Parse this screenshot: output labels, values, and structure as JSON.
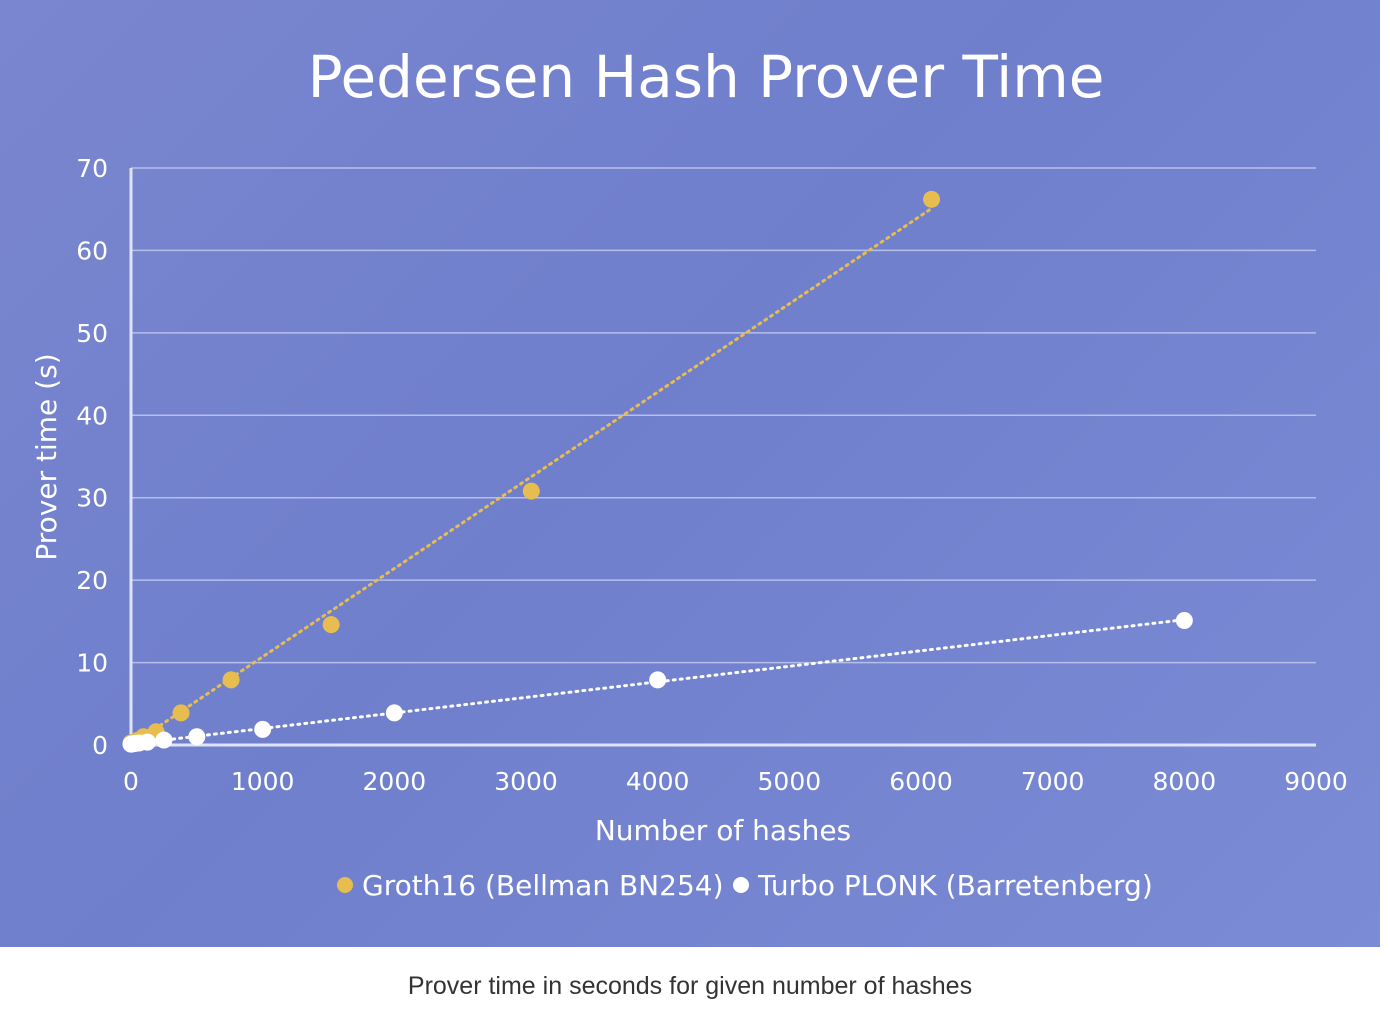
{
  "caption": "Prover time in seconds for given number of hashes",
  "colors": {
    "background": "#7482cf",
    "groth16": "#e7bd4f",
    "plonk": "#ffffff",
    "text": "#ffffff"
  },
  "chart_data": {
    "type": "scatter",
    "title": "Pedersen Hash Prover Time",
    "xlabel": "Number of hashes",
    "ylabel": "Prover time (s)",
    "xlim": [
      0,
      9000
    ],
    "ylim": [
      0,
      70
    ],
    "x_ticks": [
      "0",
      "1000",
      "2000",
      "3000",
      "4000",
      "5000",
      "6000",
      "7000",
      "8000",
      "9000"
    ],
    "y_ticks": [
      "0",
      "10",
      "20",
      "30",
      "40",
      "50",
      "60",
      "70"
    ],
    "grid": true,
    "legend_position": "bottom",
    "trendlines": "dotted linear",
    "series": [
      {
        "name": "Groth16 (Bellman BN254)",
        "color": "#e7bd4f",
        "x": [
          0,
          24,
          48,
          95,
          190,
          380,
          760,
          1520,
          3040,
          6080
        ],
        "y": [
          0.25,
          0.4,
          0.55,
          1.0,
          1.6,
          3.9,
          7.9,
          14.6,
          30.8,
          66.2
        ]
      },
      {
        "name": "Turbo PLONK (Barretenberg)",
        "color": "#ffffff",
        "x": [
          0,
          16,
          32,
          63,
          125,
          250,
          500,
          1000,
          2000,
          4000,
          8000
        ],
        "y": [
          0.1,
          0.15,
          0.2,
          0.25,
          0.35,
          0.6,
          1.0,
          1.9,
          3.9,
          7.9,
          15.1
        ]
      }
    ]
  }
}
